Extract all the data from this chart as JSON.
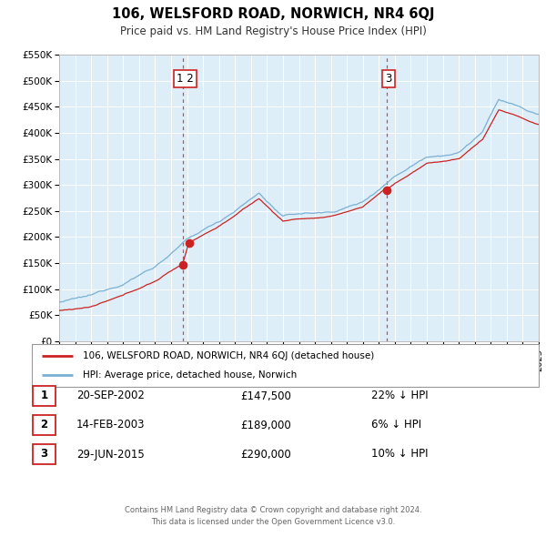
{
  "title": "106, WELSFORD ROAD, NORWICH, NR4 6QJ",
  "subtitle": "Price paid vs. HM Land Registry's House Price Index (HPI)",
  "background_color": "#ffffff",
  "plot_background_color": "#ddeef8",
  "grid_color": "#ffffff",
  "ylim": [
    0,
    550000
  ],
  "yticks": [
    0,
    50000,
    100000,
    150000,
    200000,
    250000,
    300000,
    350000,
    400000,
    450000,
    500000,
    550000
  ],
  "ytick_labels": [
    "£0",
    "£50K",
    "£100K",
    "£150K",
    "£200K",
    "£250K",
    "£300K",
    "£350K",
    "£400K",
    "£450K",
    "£500K",
    "£550K"
  ],
  "hpi_color": "#7ab0d4",
  "price_color": "#cc2222",
  "marker_color": "#cc2222",
  "vline_color": "#dd4444",
  "sale1_x": 2002.72,
  "sale2_x": 2003.12,
  "sale3_x": 2015.5,
  "sale1_price": 147500,
  "sale2_price": 189000,
  "sale3_price": 290000,
  "legend_label_price": "106, WELSFORD ROAD, NORWICH, NR4 6QJ (detached house)",
  "legend_label_hpi": "HPI: Average price, detached house, Norwich",
  "table_rows": [
    {
      "num": "1",
      "date": "20-SEP-2002",
      "price": "£147,500",
      "pct": "22% ↓ HPI"
    },
    {
      "num": "2",
      "date": "14-FEB-2003",
      "price": "£189,000",
      "pct": "6% ↓ HPI"
    },
    {
      "num": "3",
      "date": "29-JUN-2015",
      "price": "£290,000",
      "pct": "10% ↓ HPI"
    }
  ],
  "footer": "Contains HM Land Registry data © Crown copyright and database right 2024.\nThis data is licensed under the Open Government Licence v3.0.",
  "xmin": 1995,
  "xmax": 2025
}
